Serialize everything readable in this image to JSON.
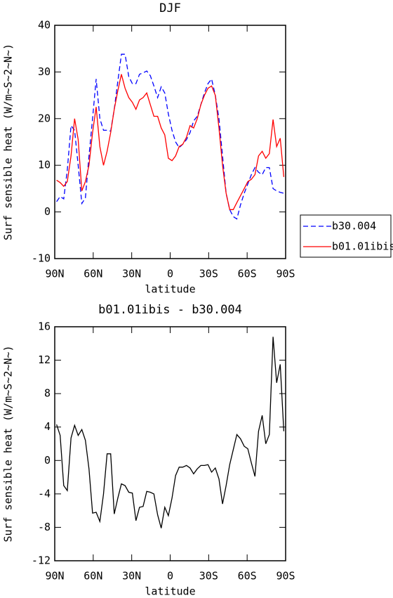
{
  "chart_data": [
    {
      "type": "line",
      "title": "DJF",
      "xlabel": "latitude",
      "ylabel": "Surf sensible heat (W/m~S~2~N~)",
      "x": [
        88.6,
        85.8,
        83.0,
        80.2,
        77.3,
        74.5,
        71.7,
        68.9,
        66.1,
        63.3,
        60.5,
        57.7,
        54.8,
        52.0,
        49.2,
        46.4,
        43.6,
        40.8,
        38.0,
        35.2,
        32.3,
        29.5,
        26.7,
        23.9,
        21.1,
        18.3,
        15.5,
        12.7,
        9.8,
        7.0,
        4.2,
        1.4,
        -1.4,
        -4.2,
        -7.0,
        -9.8,
        -12.7,
        -15.5,
        -18.3,
        -21.1,
        -23.9,
        -26.7,
        -29.5,
        -32.3,
        -35.2,
        -38.0,
        -40.8,
        -43.6,
        -46.4,
        -49.2,
        -52.0,
        -54.8,
        -57.7,
        -60.5,
        -63.3,
        -66.1,
        -68.9,
        -71.7,
        -74.5,
        -77.3,
        -80.2,
        -83.0,
        -85.8,
        -88.6
      ],
      "series": [
        {
          "name": "b30.004",
          "color": "#0000ff",
          "dashed": true,
          "values": [
            2.2,
            3.3,
            2.8,
            9,
            18.5,
            17.5,
            10,
            1.8,
            3,
            12,
            20,
            28.5,
            20,
            17.5,
            17.5,
            17.3,
            22,
            28,
            33.8,
            33.8,
            29,
            27.5,
            27.5,
            29.5,
            29.8,
            30.2,
            29.2,
            27,
            24.5,
            26.8,
            25.5,
            21,
            17.5,
            15,
            13.8,
            14.5,
            15.5,
            17,
            19.5,
            20.5,
            23,
            25.5,
            27.5,
            28.5,
            25,
            20,
            12,
            4,
            0.5,
            -1,
            -1.5,
            1.5,
            4,
            6,
            8,
            9.5,
            8.5,
            8,
            9.5,
            9.5,
            5,
            4.5,
            4.2,
            4
          ]
        },
        {
          "name": "b01.01ibis",
          "color": "#ff0000",
          "dashed": false,
          "values": [
            6.8,
            6.3,
            5.5,
            6.5,
            12,
            20,
            15.5,
            4.5,
            6.5,
            10,
            17,
            22.5,
            14,
            10,
            13,
            17,
            22,
            26,
            29.5,
            26.5,
            24.5,
            23.5,
            22,
            24,
            24.5,
            25.5,
            23,
            20.5,
            20.5,
            18,
            16.5,
            11.5,
            11,
            12,
            14,
            14.5,
            16,
            18.5,
            18,
            20,
            23,
            25,
            26.5,
            27,
            25,
            18,
            10,
            4,
            0.5,
            0.5,
            2,
            3.5,
            5,
            6.5,
            7,
            8,
            12,
            13,
            11.5,
            12.5,
            19.8,
            14,
            15.8,
            7.5
          ]
        }
      ],
      "xlim": [
        90,
        -90
      ],
      "xticks": [
        {
          "value": 90,
          "label": "90N"
        },
        {
          "value": 60,
          "label": "60N"
        },
        {
          "value": 30,
          "label": "30N"
        },
        0,
        {
          "value": -30,
          "label": "30S"
        },
        {
          "value": -60,
          "label": "60S"
        },
        {
          "value": -90,
          "label": "90S"
        }
      ],
      "ylim": [
        -10,
        40
      ],
      "yticks": [
        -10,
        0,
        10,
        20,
        30,
        40
      ],
      "legend": "right"
    },
    {
      "type": "line",
      "title": "b01.01ibis - b30.004",
      "xlabel": "latitude",
      "ylabel": "Surf sensible heat (W/m~S~2~N~)",
      "x": [
        88.6,
        85.8,
        83.0,
        80.2,
        77.3,
        74.5,
        71.7,
        68.9,
        66.1,
        63.3,
        60.5,
        57.7,
        54.8,
        52.0,
        49.2,
        46.4,
        43.6,
        40.8,
        38.0,
        35.2,
        32.3,
        29.5,
        26.7,
        23.9,
        21.1,
        18.3,
        15.5,
        12.7,
        9.8,
        7.0,
        4.2,
        1.4,
        -1.4,
        -4.2,
        -7.0,
        -9.8,
        -12.7,
        -15.5,
        -18.3,
        -21.1,
        -23.9,
        -26.7,
        -29.5,
        -32.3,
        -35.2,
        -38.0,
        -40.8,
        -43.6,
        -46.4,
        -49.2,
        -52.0,
        -54.8,
        -57.7,
        -60.5,
        -63.3,
        -66.1,
        -68.9,
        -71.7,
        -74.5,
        -77.3,
        -80.2,
        -83.0,
        -85.8,
        -88.6
      ],
      "series": [
        {
          "color": "#000000",
          "dashed": false,
          "values": [
            4.3,
            3.0,
            -3,
            -3.6,
            2.7,
            4.2,
            3,
            3.7,
            2.4,
            -1,
            -6.3,
            -6.2,
            -7.3,
            -4,
            0.8,
            0.8,
            -6.4,
            -4.5,
            -2.8,
            -3,
            -3.8,
            -3.9,
            -7.2,
            -5.6,
            -5.5,
            -3.7,
            -3.8,
            -4,
            -6.5,
            -8.1,
            -5.6,
            -6.6,
            -4.5,
            -1.8,
            -0.8,
            -0.8,
            -0.6,
            -0.9,
            -1.6,
            -1,
            -0.6,
            -0.6,
            -0.5,
            -1.4,
            -0.9,
            -2.2,
            -5.2,
            -3,
            -0.5,
            1.3,
            3.1,
            2.6,
            1.7,
            1.4,
            -0.3,
            -1.9,
            3.5,
            5.4,
            2,
            3.1,
            14.8,
            9.3,
            11.5,
            3.5
          ]
        }
      ],
      "xlim": [
        90,
        -90
      ],
      "xticks": [
        {
          "value": 90,
          "label": "90N"
        },
        {
          "value": 60,
          "label": "60N"
        },
        {
          "value": 30,
          "label": "30N"
        },
        0,
        {
          "value": -30,
          "label": "30S"
        },
        {
          "value": -60,
          "label": "60S"
        },
        {
          "value": -90,
          "label": "90S"
        }
      ],
      "ylim": [
        -12,
        16
      ],
      "yticks": [
        -12,
        -8,
        -4,
        0,
        4,
        8,
        12,
        16
      ]
    }
  ]
}
